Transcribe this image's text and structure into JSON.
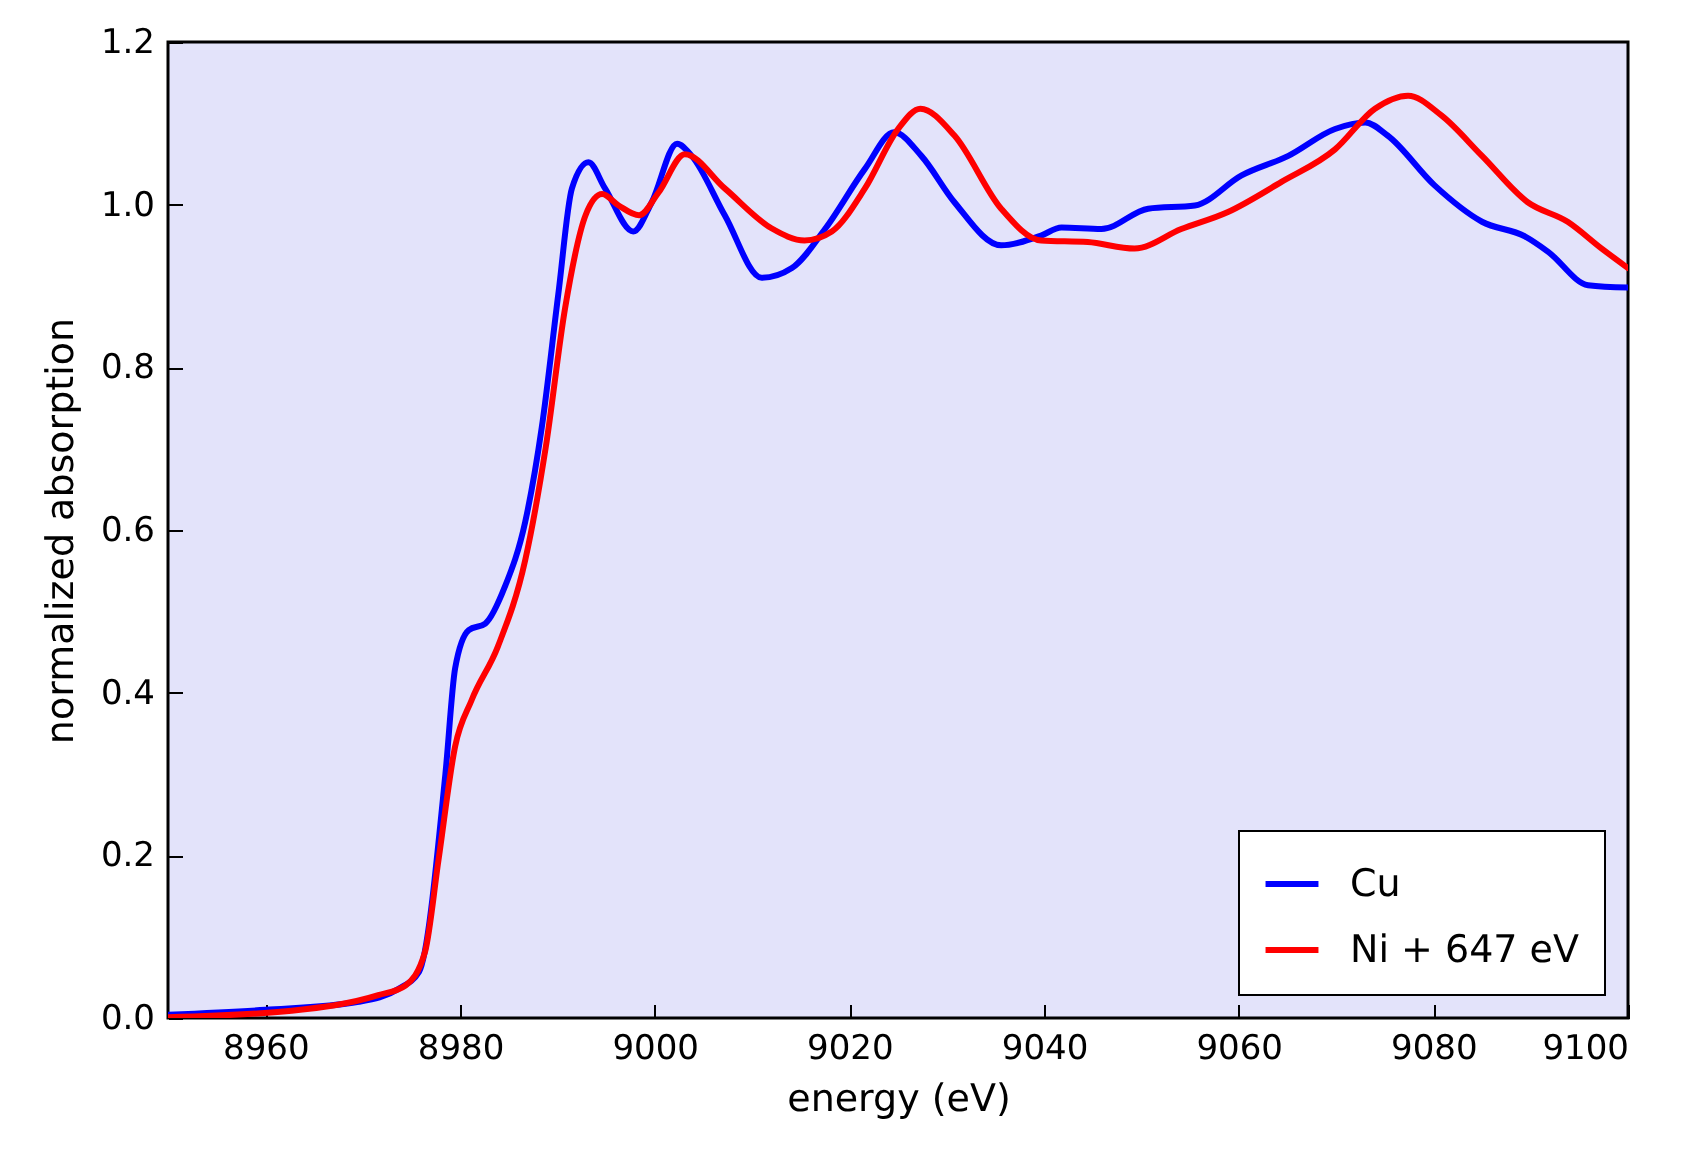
{
  "chart_data": {
    "type": "line",
    "xlabel": "energy (eV)",
    "ylabel": "normalized absorption",
    "xlim": [
      8950,
      9100
    ],
    "ylim": [
      0,
      1.2
    ],
    "xticks": [
      8960,
      8980,
      9000,
      9020,
      9040,
      9060,
      9080,
      9100
    ],
    "yticks": [
      {
        "value": 0,
        "label": "0.0"
      },
      0.2,
      0.4,
      0.6,
      0.8,
      {
        "value": 1,
        "label": "1.0"
      },
      1.2
    ],
    "grid": false,
    "legend": "bottom right",
    "line_style": "solid",
    "marker": "none",
    "series": [
      {
        "name": "Cu",
        "color": "#0000ff",
        "x": [
          8950,
          8960,
          8969.6,
          8973.7,
          8975.8,
          8978.5,
          8979.5,
          8980.9,
          8982.6,
          8984.6,
          8986.7,
          8988.4,
          8990.1,
          8991.5,
          8993.2,
          8994.9,
          8997.8,
          8999.7,
          9002.3,
          9003.8,
          9007.2,
          9011,
          9014.1,
          9017.5,
          9021.6,
          9024.6,
          9027.4,
          9030.8,
          9035.6,
          9039.7,
          9041.8,
          9045.9,
          9050.7,
          9055.5,
          9060.3,
          9065.1,
          9069.9,
          9073,
          9075.3,
          9080.1,
          9085,
          9089.4,
          9091.8,
          9095.9,
          9100
        ],
        "values": [
          0.004,
          0.01,
          0.02,
          0.036,
          0.057,
          0.3,
          0.43,
          0.477,
          0.485,
          0.53,
          0.61,
          0.726,
          0.89,
          1.02,
          1.052,
          1.02,
          0.967,
          1.003,
          1.075,
          1.06,
          0.987,
          0.91,
          0.922,
          0.97,
          1.044,
          1.089,
          1.06,
          1.003,
          0.95,
          0.962,
          0.972,
          0.97,
          0.995,
          0.999,
          1.036,
          1.06,
          1.093,
          1.101,
          1.085,
          1.024,
          0.979,
          0.961,
          0.942,
          0.901,
          0.898
        ]
      },
      {
        "name": "Ni + 647 eV",
        "color": "#ff0000",
        "x": [
          8950,
          8962.7,
          8971.6,
          8974.4,
          8976.4,
          8977.8,
          8979.5,
          8981.2,
          8983.9,
          8986.7,
          8988.8,
          8990.8,
          8992.9,
          8994.6,
          8996.3,
          8998.4,
          9000.4,
          9003.1,
          9007.2,
          9012,
          9015.4,
          9018.2,
          9021.6,
          9025,
          9027.3,
          9030.8,
          9035.6,
          9039.7,
          9044.5,
          9049.3,
          9054.1,
          9058.9,
          9064.4,
          9069.9,
          9074,
          9077.4,
          9080.8,
          9085,
          9089.7,
          9093.8,
          9097.3,
          9100
        ],
        "values": [
          0.001,
          0.009,
          0.028,
          0.04,
          0.081,
          0.195,
          0.334,
          0.391,
          0.457,
          0.563,
          0.701,
          0.873,
          0.987,
          1.013,
          0.999,
          0.987,
          1.015,
          1.062,
          1.02,
          0.971,
          0.956,
          0.967,
          1.02,
          1.093,
          1.118,
          1.085,
          0.995,
          0.956,
          0.954,
          0.946,
          0.97,
          0.991,
          1.028,
          1.068,
          1.118,
          1.134,
          1.11,
          1.06,
          1.003,
          0.979,
          0.946,
          0.922
        ]
      }
    ]
  }
}
